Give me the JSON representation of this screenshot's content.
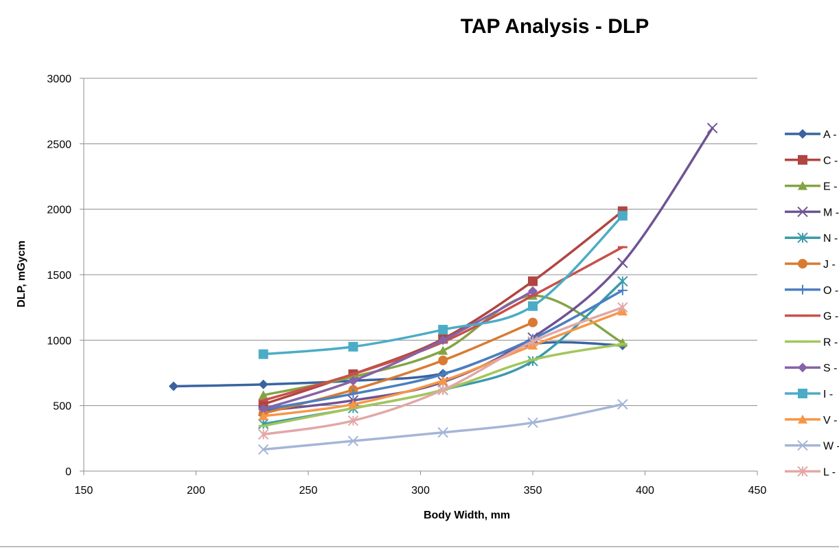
{
  "chart_data": {
    "type": "line",
    "title": "TAP Analysis - DLP",
    "xlabel": "Body Width, mm",
    "ylabel": "DLP, mGycm",
    "xlim": [
      150,
      450
    ],
    "ylim": [
      0,
      3000
    ],
    "xticks": [
      150,
      200,
      250,
      300,
      350,
      400,
      450
    ],
    "yticks": [
      0,
      500,
      1000,
      1500,
      2000,
      2500,
      3000
    ],
    "grid": "horizontal",
    "legend_position": "right",
    "series": [
      {
        "name": "A -",
        "color": "#3a64a0",
        "marker": "diamond",
        "x": [
          190,
          230,
          270,
          310,
          350,
          390
        ],
        "y": [
          648,
          662,
          690,
          745,
          970,
          960
        ]
      },
      {
        "name": "C -",
        "color": "#b04541",
        "marker": "square",
        "x": [
          230,
          270,
          310,
          350,
          390
        ],
        "y": [
          510,
          740,
          1010,
          1450,
          1985
        ]
      },
      {
        "name": "E -",
        "color": "#84a443",
        "marker": "triangle",
        "x": [
          230,
          270,
          310,
          350,
          390
        ],
        "y": [
          580,
          720,
          920,
          1340,
          980
        ]
      },
      {
        "name": "M -",
        "color": "#6e5394",
        "marker": "x",
        "x": [
          230,
          270,
          310,
          350,
          390,
          430
        ],
        "y": [
          460,
          540,
          680,
          1020,
          1590,
          2620
        ]
      },
      {
        "name": "N -",
        "color": "#3a9aab",
        "marker": "star",
        "x": [
          230,
          270,
          310,
          350,
          390
        ],
        "y": [
          360,
          480,
          620,
          840,
          1450
        ]
      },
      {
        "name": "J -",
        "color": "#d87b32",
        "marker": "circle",
        "x": [
          230,
          270,
          310,
          350
        ],
        "y": [
          440,
          620,
          845,
          1135
        ]
      },
      {
        "name": "O -",
        "color": "#4a7fc0",
        "marker": "plus",
        "x": [
          230,
          270,
          310,
          350,
          390
        ],
        "y": [
          470,
          590,
          740,
          1010,
          1380
        ]
      },
      {
        "name": "G -",
        "color": "#c8504b",
        "marker": "dash",
        "x": [
          230,
          270,
          310,
          350,
          390
        ],
        "y": [
          540,
          740,
          985,
          1340,
          1710
        ]
      },
      {
        "name": "R -",
        "color": "#a3c65b",
        "marker": "dash",
        "x": [
          230,
          270,
          310,
          350,
          390
        ],
        "y": [
          345,
          480,
          620,
          850,
          970
        ]
      },
      {
        "name": "S -",
        "color": "#8463a8",
        "marker": "diamond",
        "x": [
          230,
          270,
          310,
          350
        ],
        "y": [
          475,
          690,
          1000,
          1375
        ]
      },
      {
        "name": "I -",
        "color": "#4bacc6",
        "marker": "square",
        "x": [
          230,
          270,
          310,
          350,
          390
        ],
        "y": [
          893,
          950,
          1080,
          1260,
          1950
        ]
      },
      {
        "name": "V -",
        "color": "#f79646",
        "marker": "triangle",
        "x": [
          230,
          270,
          310,
          350,
          390
        ],
        "y": [
          420,
          510,
          690,
          960,
          1220
        ]
      },
      {
        "name": "W -",
        "color": "#a5b5d8",
        "marker": "x",
        "x": [
          230,
          270,
          310,
          350,
          390
        ],
        "y": [
          165,
          230,
          295,
          370,
          510
        ]
      },
      {
        "name": "L -",
        "color": "#e2a7a6",
        "marker": "star",
        "x": [
          230,
          270,
          310,
          350,
          390
        ],
        "y": [
          280,
          385,
          620,
          990,
          1250
        ]
      }
    ]
  }
}
